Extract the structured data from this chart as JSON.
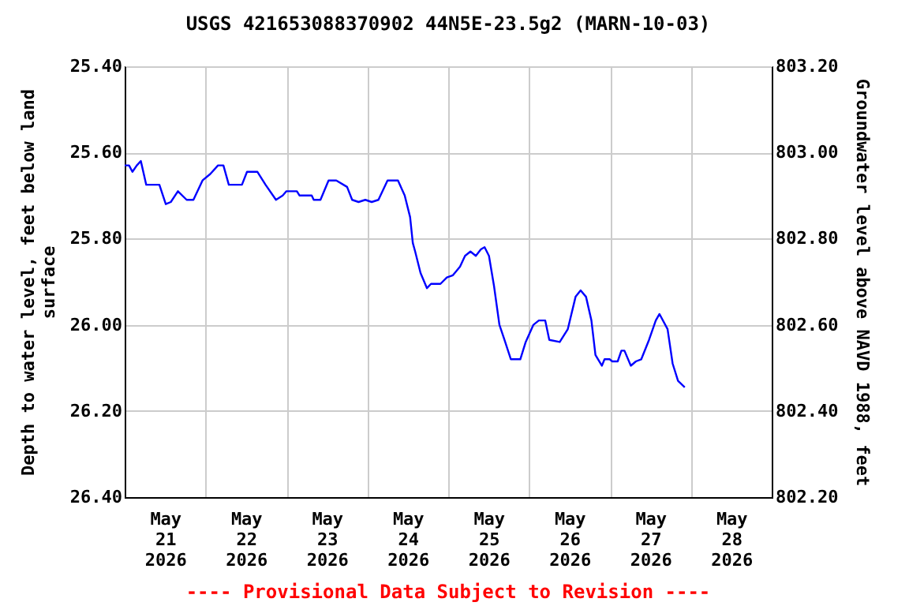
{
  "chart_data": {
    "type": "line",
    "title": "USGS 421653088370902 44N5E-23.5g2 (MARN-10-03)",
    "ylabel": "Depth to water level, feet below land surface",
    "y2label": "Groundwater level above NAVD 1988, feet",
    "annotations": [
      "---- Provisional Data Subject to Revision ----"
    ],
    "xlim": [
      "2026-05-21T00:00",
      "2026-05-29T00:00"
    ],
    "xticks": [
      {
        "value": "2026-05-21T12:00",
        "label": "May\n21\n2026"
      },
      {
        "value": "2026-05-22T00:00",
        "label": null
      },
      {
        "value": "2026-05-22T12:00",
        "label": "May\n22\n2026"
      },
      {
        "value": "2026-05-23T00:00",
        "label": null
      },
      {
        "value": "2026-05-23T12:00",
        "label": "May\n23\n2026"
      },
      {
        "value": "2026-05-24T00:00",
        "label": null
      },
      {
        "value": "2026-05-24T12:00",
        "label": "May\n24\n2026"
      },
      {
        "value": "2026-05-25T00:00",
        "label": null
      },
      {
        "value": "2026-05-25T12:00",
        "label": "May\n25\n2026"
      },
      {
        "value": "2026-05-26T00:00",
        "label": null
      },
      {
        "value": "2026-05-26T12:00",
        "label": "May\n26\n2026"
      },
      {
        "value": "2026-05-27T00:00",
        "label": null
      },
      {
        "value": "2026-05-27T12:00",
        "label": "May\n27\n2026"
      },
      {
        "value": "2026-05-28T00:00",
        "label": null
      },
      {
        "value": "2026-05-28T12:00",
        "label": "May\n28\n2026"
      }
    ],
    "ylim": [
      26.4,
      25.4
    ],
    "yticks": [
      {
        "value": 25.4,
        "label": "25.40"
      },
      {
        "value": 25.6,
        "label": "25.60"
      },
      {
        "value": 25.8,
        "label": "25.80"
      },
      {
        "value": 26.0,
        "label": "26.00"
      },
      {
        "value": 26.2,
        "label": "26.20"
      },
      {
        "value": 26.4,
        "label": "26.40"
      }
    ],
    "y2lim": [
      802.2,
      803.2
    ],
    "y2ticks": [
      {
        "value": 802.2,
        "label": "802.20"
      },
      {
        "value": 802.4,
        "label": "802.40"
      },
      {
        "value": 802.6,
        "label": "802.60"
      },
      {
        "value": 802.8,
        "label": "802.80"
      },
      {
        "value": 803.0,
        "label": "803.00"
      },
      {
        "value": 803.2,
        "label": "803.20"
      }
    ],
    "grid": true,
    "legend": false,
    "series": [
      {
        "color": "#0000ff",
        "x": [
          "2026-05-21T00:00",
          "2026-05-21T01:18",
          "2026-05-21T02:18",
          "2026-05-21T03:36",
          "2026-05-21T04:48",
          "2026-05-21T06:24",
          "2026-05-21T10:18",
          "2026-05-21T12:12",
          "2026-05-21T13:42",
          "2026-05-21T15:48",
          "2026-05-21T18:24",
          "2026-05-21T20:24",
          "2026-05-21T23:06",
          "2026-05-22T01:24",
          "2026-05-22T03:42",
          "2026-05-22T05:18",
          "2026-05-22T06:54",
          "2026-05-22T10:48",
          "2026-05-22T12:18",
          "2026-05-22T15:24",
          "2026-05-22T17:48",
          "2026-05-22T20:54",
          "2026-05-22T22:54",
          "2026-05-23T00:00",
          "2026-05-23T03:06",
          "2026-05-23T03:54",
          "2026-05-23T07:30",
          "2026-05-23T08:06",
          "2026-05-23T10:06",
          "2026-05-23T12:30",
          "2026-05-23T14:48",
          "2026-05-23T18:00",
          "2026-05-23T19:30",
          "2026-05-23T21:24",
          "2026-05-23T23:24",
          "2026-05-24T01:18",
          "2026-05-24T03:18",
          "2026-05-24T06:00",
          "2026-05-24T09:06",
          "2026-05-24T11:06",
          "2026-05-24T12:42",
          "2026-05-24T13:30",
          "2026-05-24T14:12",
          "2026-05-24T15:48",
          "2026-05-24T17:42",
          "2026-05-24T18:54",
          "2026-05-24T21:42",
          "2026-05-24T23:36",
          "2026-05-25T01:24",
          "2026-05-25T03:30",
          "2026-05-25T05:00",
          "2026-05-25T06:36",
          "2026-05-25T08:12",
          "2026-05-25T09:42",
          "2026-05-25T10:48",
          "2026-05-25T12:06",
          "2026-05-25T13:36",
          "2026-05-25T15:12",
          "2026-05-25T16:42",
          "2026-05-25T18:36",
          "2026-05-25T21:24",
          "2026-05-25T23:00",
          "2026-05-26T01:18",
          "2026-05-26T02:54",
          "2026-05-26T04:48",
          "2026-05-26T06:00",
          "2026-05-26T09:06",
          "2026-05-26T11:30",
          "2026-05-26T13:48",
          "2026-05-26T15:18",
          "2026-05-26T16:54",
          "2026-05-26T18:30",
          "2026-05-26T19:42",
          "2026-05-26T21:36",
          "2026-05-26T22:24",
          "2026-05-26T23:54",
          "2026-05-27T00:42",
          "2026-05-27T02:18",
          "2026-05-27T03:24",
          "2026-05-27T04:18",
          "2026-05-27T06:12",
          "2026-05-27T07:42",
          "2026-05-27T09:18",
          "2026-05-27T11:36",
          "2026-05-27T13:36",
          "2026-05-27T14:42",
          "2026-05-27T17:06",
          "2026-05-27T18:36",
          "2026-05-27T20:12",
          "2026-05-27T22:12"
        ],
        "values": [
          25.63,
          25.63,
          25.645,
          25.63,
          25.62,
          25.675,
          25.675,
          25.72,
          25.715,
          25.69,
          25.71,
          25.71,
          25.665,
          25.65,
          25.63,
          25.63,
          25.675,
          25.675,
          25.645,
          25.645,
          25.675,
          25.71,
          25.7,
          25.69,
          25.69,
          25.7,
          25.7,
          25.71,
          25.71,
          25.665,
          25.665,
          25.68,
          25.71,
          25.715,
          25.71,
          25.715,
          25.71,
          25.665,
          25.665,
          25.7,
          25.75,
          25.81,
          25.83,
          25.88,
          25.915,
          25.905,
          25.905,
          25.89,
          25.885,
          25.865,
          25.84,
          25.83,
          25.84,
          25.825,
          25.82,
          25.84,
          25.91,
          26.0,
          26.035,
          26.08,
          26.08,
          26.04,
          26.0,
          25.99,
          25.99,
          26.035,
          26.04,
          26.01,
          25.935,
          25.92,
          25.935,
          25.99,
          26.07,
          26.095,
          26.08,
          26.08,
          26.085,
          26.085,
          26.06,
          26.06,
          26.095,
          26.085,
          26.08,
          26.035,
          25.99,
          25.975,
          26.01,
          26.09,
          26.13,
          26.145
        ]
      }
    ]
  }
}
